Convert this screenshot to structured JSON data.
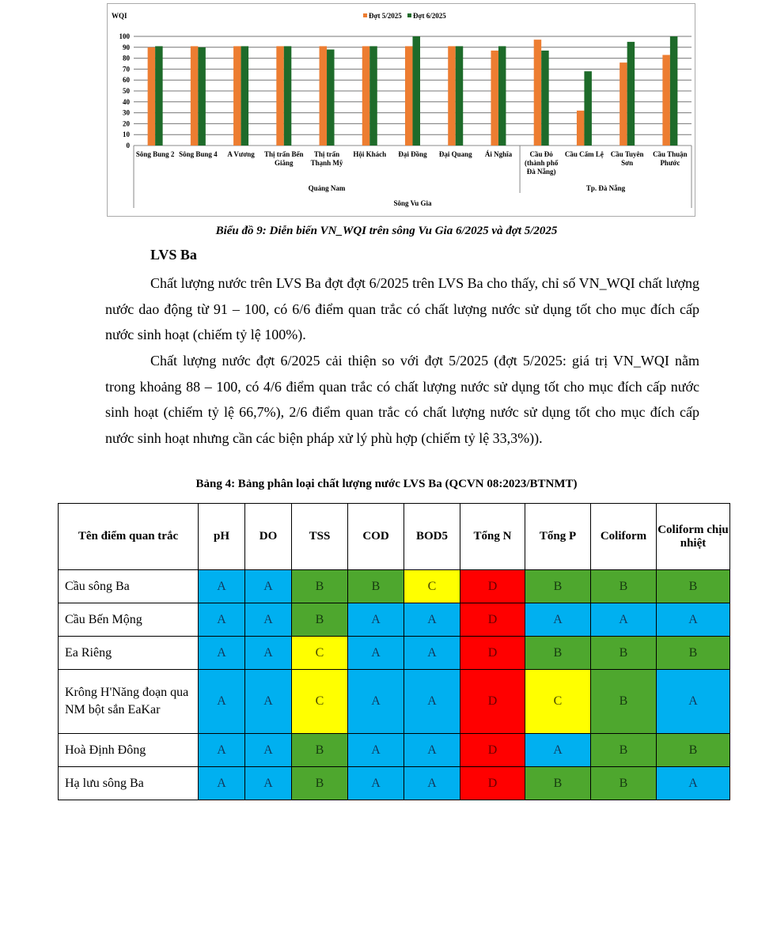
{
  "chart_data": {
    "type": "bar",
    "ylabel": "WQI",
    "ylim": [
      0,
      100
    ],
    "yticks": [
      0,
      10,
      20,
      30,
      40,
      50,
      60,
      70,
      80,
      90,
      100
    ],
    "grid": true,
    "legend": "top",
    "categories": [
      "Sông Bung 2",
      "Sông Bung 4",
      "A Vương",
      "Thị trấn Bến Giằng",
      "Thị trấn Thạnh Mỹ",
      "Hội Khách",
      "Đại Đồng",
      "Đại Quang",
      "Ái Nghĩa",
      "Cầu Đỏ (thành phố Đà Nẵng)",
      "Cầu Cẩm Lệ",
      "Cầu Tuyên Sơn",
      "Cầu Thuận Phước"
    ],
    "groups": [
      {
        "name": "Quảng Nam",
        "count": 9
      },
      {
        "name": "Tp. Đà Nẵng",
        "count": 4
      }
    ],
    "super_group": "Sông Vu Gia",
    "series": [
      {
        "name": "Đợt 5/2025",
        "color": "#ed7d31",
        "values": [
          90,
          91,
          91,
          91,
          91,
          91,
          91,
          91,
          87,
          97,
          32,
          76,
          83
        ]
      },
      {
        "name": "Đợt 6/2025",
        "color": "#1e6b2a",
        "values": [
          91,
          90,
          91,
          91,
          88,
          91,
          100,
          91,
          91,
          87,
          68,
          95,
          100
        ]
      }
    ]
  },
  "chart_caption": "Biểu đồ 9: Diễn biến VN_WQI trên sông Vu Gia 6/2025 và đợt 5/2025",
  "heading": "LVS Ba",
  "paragraphs": [
    "Chất lượng nước trên LVS Ba đợt đợt 6/2025 trên LVS Ba cho thấy, chỉ số VN_WQI chất lượng nước dao động từ 91 – 100, có 6/6 điểm quan trắc có chất lượng nước sử dụng tốt cho mục đích cấp nước sinh hoạt (chiếm tỷ lệ 100%).",
    "Chất lượng nước đợt 6/2025 cải thiện so với đợt 5/2025 (đợt 5/2025: giá trị VN_WQI nằm trong khoảng 88 – 100, có 4/6 điểm quan trắc có chất lượng nước sử dụng tốt cho mục đích cấp nước sinh hoạt (chiếm tỷ lệ 66,7%), 2/6 điểm quan trắc có chất lượng nước sử dụng tốt cho mục đích cấp nước sinh hoạt nhưng cần các biện pháp xử lý phù hợp (chiếm tỷ lệ 33,3%))."
  ],
  "table": {
    "caption": "Bảng 4: Bảng phân loại chất lượng nước LVS Ba (QCVN 08:2023/BTNMT)",
    "headers": [
      "Tên điểm quan trắc",
      "pH",
      "DO",
      "TSS",
      "COD",
      "BOD5",
      "Tổng N",
      "Tổng P",
      "Coliform",
      "Coliform chịu nhiệt"
    ],
    "class_colors": {
      "A": "#00b0f0",
      "B": "#4ea72e",
      "C": "#ffff00",
      "D": "#ff0000"
    },
    "rows": [
      {
        "name": "Cầu sông Ba",
        "values": [
          "A",
          "A",
          "B",
          "B",
          "C",
          "D",
          "B",
          "B",
          "B"
        ]
      },
      {
        "name": "Cầu Bến Mộng",
        "values": [
          "A",
          "A",
          "B",
          "A",
          "A",
          "D",
          "A",
          "A",
          "A"
        ]
      },
      {
        "name": "Ea Riêng",
        "values": [
          "A",
          "A",
          "C",
          "A",
          "A",
          "D",
          "B",
          "B",
          "B"
        ]
      },
      {
        "name": "Krông H'Năng đoạn qua NM bột sắn EaKar",
        "values": [
          "A",
          "A",
          "C",
          "A",
          "A",
          "D",
          "C",
          "B",
          "A"
        ]
      },
      {
        "name": "Hoà Định Đông",
        "values": [
          "A",
          "A",
          "B",
          "A",
          "A",
          "D",
          "A",
          "B",
          "B"
        ]
      },
      {
        "name": "Hạ lưu sông Ba",
        "values": [
          "A",
          "A",
          "B",
          "A",
          "A",
          "D",
          "B",
          "B",
          "A"
        ]
      }
    ]
  }
}
